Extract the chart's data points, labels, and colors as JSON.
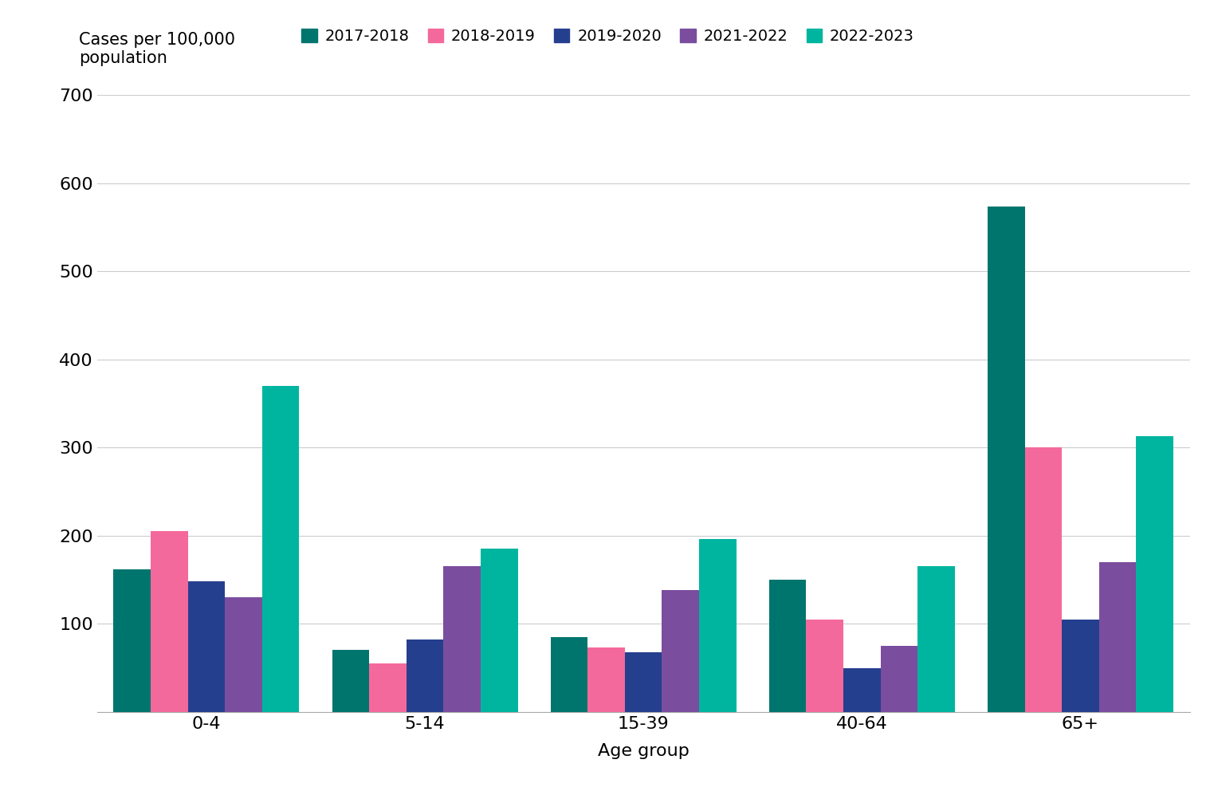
{
  "categories": [
    "0-4",
    "5-14",
    "15-39",
    "40-64",
    "65+"
  ],
  "series": {
    "2017-2018": [
      162,
      70,
      85,
      150,
      573
    ],
    "2018-2019": [
      205,
      55,
      73,
      105,
      300
    ],
    "2019-2020": [
      148,
      82,
      68,
      50,
      105
    ],
    "2021-2022": [
      130,
      165,
      138,
      75,
      170
    ],
    "2022-2023": [
      370,
      185,
      196,
      165,
      313
    ]
  },
  "colors": {
    "2017-2018": "#00756e",
    "2018-2019": "#f4699b",
    "2019-2020": "#253f8f",
    "2021-2022": "#7b4d9e",
    "2022-2023": "#00b5a0"
  },
  "ylabel_text": "Cases per 100,000\npopulation",
  "xlabel": "Age group",
  "ylim": [
    0,
    700
  ],
  "yticks": [
    0,
    100,
    200,
    300,
    400,
    500,
    600,
    700
  ],
  "background_color": "#ffffff",
  "grid_color": "#cccccc"
}
